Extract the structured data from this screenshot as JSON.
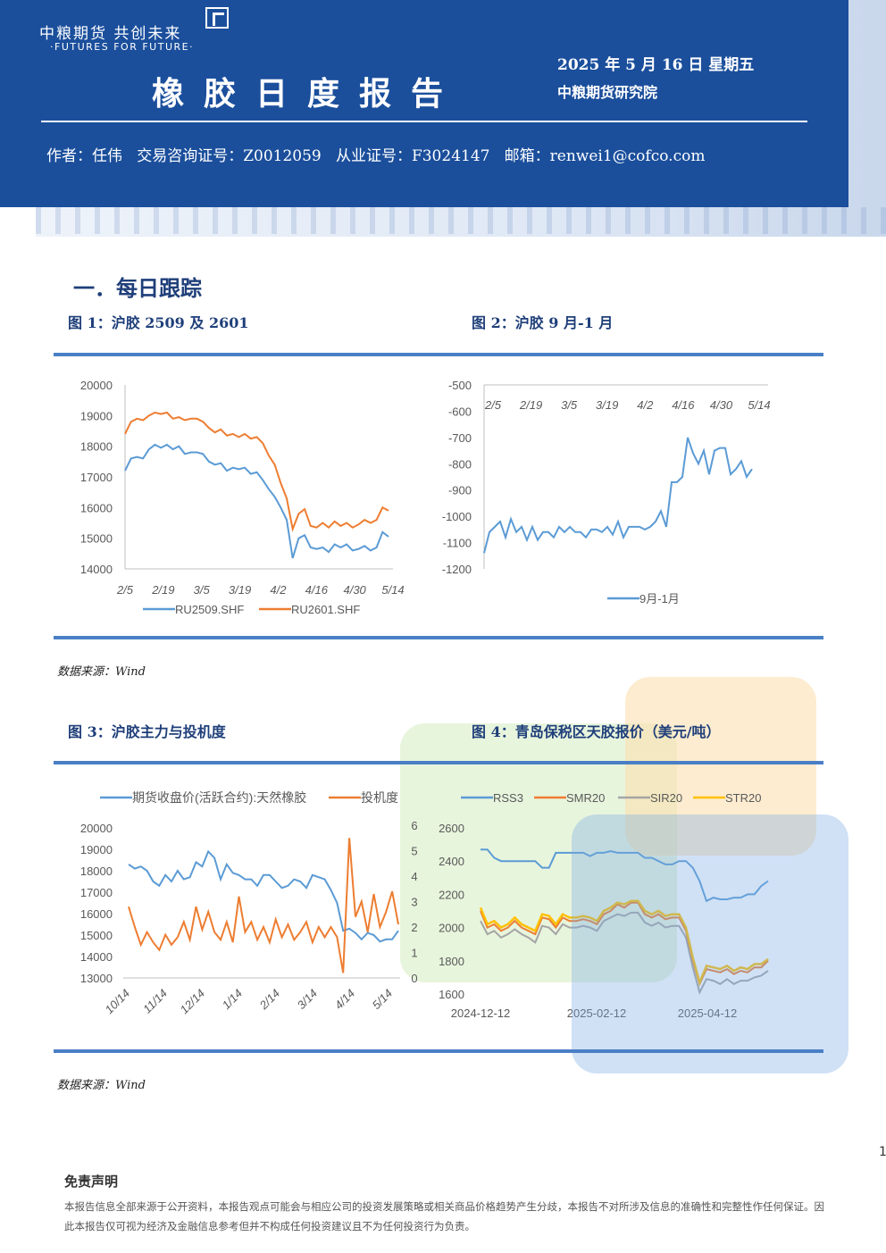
{
  "header": {
    "logo_cn": "中粮期货 共创未来",
    "logo_en": "·FUTURES FOR FUTURE·",
    "title": "橡胶日度报告",
    "date": "2025 年 5 月 16 日 星期五",
    "org": "中粮期货研究院",
    "author_line": "作者：任伟   交易咨询证号：Z0012059   从业证号：F3024147   邮箱：renwei1@cofco.com"
  },
  "section": {
    "heading": "一．每日跟踪"
  },
  "figures": {
    "fig1_title": "图 1：沪胶 2509 及 2601",
    "fig2_title": "图 2：沪胶 9 月-1 月",
    "fig3_title": "图 3：沪胶主力与投机度",
    "fig4_title": "图 4：青岛保税区天胶报价（美元/吨）"
  },
  "sources": {
    "source1": "数据来源：Wind",
    "source2": "数据来源：Wind"
  },
  "page_number": "1",
  "disclaimer": {
    "title": "免责声明",
    "text": "本报告信息全部来源于公开资料，本报告观点可能会与相应公司的投资发展策略或相关商品价格趋势产生分歧，本报告不对所涉及信息的准确性和完整性作任何保证。因此本报告仅可视为经济及金融信息参考但并不构成任何投资建议且不为任何投资行为负责。"
  },
  "colors": {
    "blue_series": "#5b9bd5",
    "orange_series": "#ed7d31",
    "gray_series": "#a5a5a5",
    "yellow_series": "#ffc000",
    "banner": "#1b4f9c"
  },
  "chart_data": [
    {
      "type": "line",
      "id": "fig1",
      "x_ticks": [
        "2/5",
        "2/19",
        "3/5",
        "3/19",
        "4/2",
        "4/16",
        "4/30",
        "5/14"
      ],
      "yticks": [
        "20000",
        "19000",
        "18000",
        "17000",
        "16000",
        "15000",
        "14000"
      ],
      "ylim": [
        14000,
        20000
      ],
      "series": [
        {
          "name": "RU2509.SHF",
          "values": [
            17200,
            17600,
            17650,
            17600,
            17900,
            18050,
            17950,
            18050,
            17900,
            18000,
            17750,
            17800,
            17800,
            17750,
            17500,
            17400,
            17450,
            17200,
            17300,
            17250,
            17300,
            17100,
            17150,
            16900,
            16600,
            16350,
            16000,
            15600,
            14350,
            15000,
            15100,
            14700,
            14650,
            14700,
            14550,
            14800,
            14700,
            14800,
            14600,
            14650,
            14750,
            14600,
            14700,
            15200,
            15050
          ]
        },
        {
          "name": "RU2601.SHF",
          "values": [
            18400,
            18800,
            18900,
            18850,
            19000,
            19100,
            19050,
            19100,
            18900,
            18950,
            18850,
            18900,
            18900,
            18800,
            18600,
            18450,
            18550,
            18350,
            18400,
            18300,
            18400,
            18250,
            18300,
            18100,
            17700,
            17400,
            16800,
            16300,
            15300,
            15800,
            15950,
            15400,
            15350,
            15500,
            15350,
            15550,
            15400,
            15500,
            15350,
            15450,
            15600,
            15500,
            15600,
            16000,
            15900
          ]
        }
      ]
    },
    {
      "type": "line",
      "id": "fig2",
      "x_ticks": [
        "2/5",
        "2/19",
        "3/5",
        "3/19",
        "4/2",
        "4/16",
        "4/30",
        "5/14"
      ],
      "yticks": [
        "-500",
        "-600",
        "-700",
        "-800",
        "-900",
        "-1000",
        "-1100",
        "-1200"
      ],
      "ylim": [
        -1200,
        -500
      ],
      "series": [
        {
          "name": "9月-1月",
          "values": [
            -1140,
            -1060,
            -1040,
            -1020,
            -1080,
            -1010,
            -1060,
            -1040,
            -1090,
            -1040,
            -1090,
            -1060,
            -1060,
            -1080,
            -1040,
            -1060,
            -1040,
            -1060,
            -1060,
            -1080,
            -1050,
            -1050,
            -1060,
            -1040,
            -1070,
            -1020,
            -1080,
            -1040,
            -1040,
            -1040,
            -1050,
            -1040,
            -1020,
            -980,
            -1040,
            -870,
            -870,
            -850,
            -700,
            -760,
            -800,
            -750,
            -840,
            -750,
            -740,
            -740,
            -840,
            -820,
            -790,
            -850,
            -820
          ]
        }
      ]
    },
    {
      "type": "line",
      "id": "fig3",
      "x_ticks": [
        "10/14",
        "11/14",
        "12/14",
        "1/14",
        "2/14",
        "3/14",
        "4/14",
        "5/14"
      ],
      "yticks_left": [
        "20000",
        "19000",
        "18000",
        "17000",
        "16000",
        "15000",
        "14000",
        "13000"
      ],
      "yticks_right": [
        "6",
        "5",
        "4",
        "3",
        "2",
        "1",
        "0"
      ],
      "ylim_left": [
        13000,
        20000
      ],
      "ylim_right": [
        0,
        6
      ],
      "series": [
        {
          "name": "期货收盘价(活跃合约):天然橡胶",
          "axis": "left",
          "values": [
            18300,
            18100,
            18200,
            18000,
            17500,
            17300,
            17800,
            17500,
            18000,
            17600,
            17700,
            18400,
            18200,
            18900,
            18600,
            17600,
            18300,
            17900,
            17800,
            17600,
            17600,
            17300,
            17800,
            17800,
            17500,
            17200,
            17300,
            17600,
            17500,
            17200,
            17800,
            17700,
            17600,
            17100,
            16500,
            15200,
            15300,
            15100,
            14800,
            15100,
            15000,
            14700,
            14800,
            14800,
            15200
          ]
        },
        {
          "name": "投机度",
          "axis": "right",
          "values": [
            2.8,
            2.0,
            1.3,
            1.8,
            1.4,
            1.1,
            1.7,
            1.3,
            1.6,
            2.2,
            1.5,
            2.8,
            1.9,
            2.6,
            1.8,
            1.5,
            2.2,
            1.4,
            3.2,
            1.8,
            2.2,
            1.5,
            2.0,
            1.4,
            2.3,
            1.6,
            2.1,
            1.5,
            1.8,
            2.2,
            1.4,
            2.0,
            1.6,
            2.0,
            1.6,
            0.2,
            5.5,
            2.4,
            3.0,
            1.8,
            3.3,
            2.0,
            2.6,
            3.4,
            2.1
          ]
        }
      ]
    },
    {
      "type": "line",
      "id": "fig4",
      "x_ticks": [
        "2024-12-12",
        "2025-02-12",
        "2025-04-12"
      ],
      "yticks": [
        "2600",
        "2400",
        "2200",
        "2000",
        "1800",
        "1600"
      ],
      "ylim": [
        1600,
        2600
      ],
      "series": [
        {
          "name": "RSS3",
          "values": [
            2470,
            2470,
            2420,
            2400,
            2400,
            2400,
            2400,
            2400,
            2400,
            2360,
            2360,
            2450,
            2450,
            2450,
            2450,
            2450,
            2430,
            2450,
            2450,
            2460,
            2450,
            2450,
            2450,
            2450,
            2420,
            2420,
            2400,
            2380,
            2380,
            2400,
            2400,
            2360,
            2280,
            2160,
            2180,
            2170,
            2170,
            2180,
            2180,
            2200,
            2200,
            2250,
            2280
          ]
        },
        {
          "name": "SMR20",
          "values": [
            2100,
            2000,
            2020,
            1980,
            2000,
            2040,
            2000,
            1980,
            1960,
            2060,
            2050,
            2000,
            2060,
            2040,
            2040,
            2050,
            2040,
            2020,
            2080,
            2100,
            2140,
            2120,
            2150,
            2150,
            2080,
            2060,
            2080,
            2050,
            2060,
            2060,
            1980,
            1800,
            1660,
            1750,
            1740,
            1730,
            1750,
            1720,
            1740,
            1730,
            1760,
            1760,
            1800
          ]
        },
        {
          "name": "SIR20",
          "values": [
            2040,
            1960,
            1980,
            1940,
            1960,
            1990,
            1960,
            1940,
            1910,
            2010,
            2000,
            1960,
            2020,
            2000,
            2000,
            2010,
            2000,
            1980,
            2040,
            2060,
            2080,
            2070,
            2090,
            2090,
            2030,
            2010,
            2030,
            2000,
            2010,
            2010,
            1940,
            1760,
            1610,
            1690,
            1680,
            1660,
            1690,
            1660,
            1680,
            1680,
            1700,
            1710,
            1740
          ]
        },
        {
          "name": "STR20",
          "values": [
            2120,
            2020,
            2040,
            2000,
            2020,
            2060,
            2020,
            2000,
            1980,
            2080,
            2070,
            2020,
            2080,
            2060,
            2060,
            2070,
            2060,
            2040,
            2100,
            2120,
            2150,
            2140,
            2160,
            2160,
            2100,
            2080,
            2100,
            2070,
            2080,
            2080,
            2000,
            1820,
            1670,
            1770,
            1760,
            1750,
            1770,
            1740,
            1760,
            1750,
            1780,
            1780,
            1810
          ]
        }
      ]
    }
  ]
}
